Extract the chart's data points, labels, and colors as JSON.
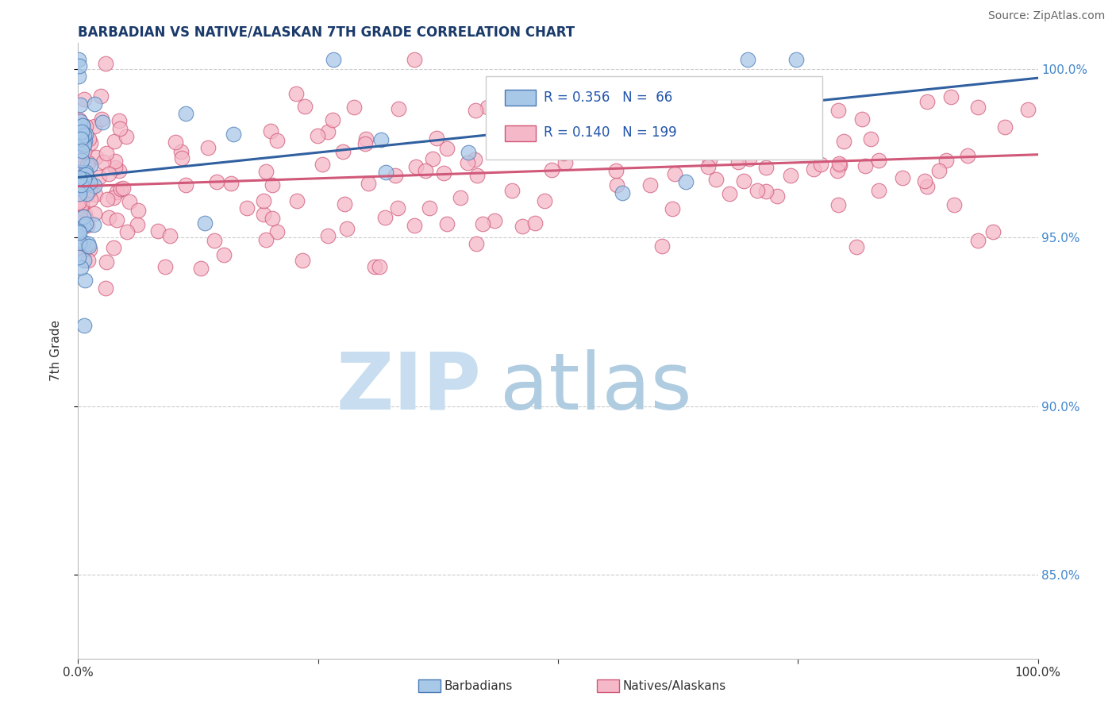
{
  "title": "BARBADIAN VS NATIVE/ALASKAN 7TH GRADE CORRELATION CHART",
  "source": "Source: ZipAtlas.com",
  "ylabel": "7th Grade",
  "legend_label1": "Barbadians",
  "legend_label2": "Natives/Alaskans",
  "r1": 0.356,
  "n1": 66,
  "r2": 0.14,
  "n2": 199,
  "color_blue_fill": "#a8c8e8",
  "color_blue_edge": "#4a7ab5",
  "color_pink_fill": "#f5b8c8",
  "color_pink_edge": "#d05878",
  "color_blue_line": "#3060a0",
  "color_pink_line": "#d05878",
  "right_ytick_labels": [
    "85.0%",
    "90.0%",
    "95.0%",
    "100.0%"
  ],
  "right_ytick_values": [
    0.85,
    0.9,
    0.95,
    1.0
  ],
  "xlim": [
    0.0,
    1.0
  ],
  "ylim": [
    0.825,
    1.008
  ],
  "grid_color": "#cccccc",
  "legend_text_color": "#2255aa",
  "title_color": "#1a3a6a",
  "source_color": "#666666",
  "ytick_color": "#4488cc",
  "watermark_zip_color": "#c8ddf0",
  "watermark_atlas_color": "#b0cce0"
}
